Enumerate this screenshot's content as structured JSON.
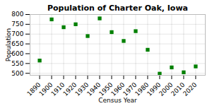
{
  "chart_data": {
    "type": "scatter",
    "title": "Population of Charter Oak, Iowa",
    "xlabel": "Census Year",
    "ylabel": "Population",
    "x": [
      1890,
      1900,
      1910,
      1920,
      1930,
      1940,
      1950,
      1960,
      1970,
      1980,
      1990,
      2000,
      2010,
      2020
    ],
    "values": [
      565,
      775,
      735,
      750,
      690,
      780,
      710,
      665,
      715,
      620,
      498,
      530,
      505,
      535
    ],
    "color": "#008000",
    "marker": "square",
    "xlim": [
      1882,
      2028
    ],
    "xticks": [
      1890,
      1900,
      1910,
      1920,
      1930,
      1940,
      1950,
      1960,
      1970,
      1980,
      1990,
      2000,
      2010,
      2020
    ],
    "ylim": [
      490,
      800
    ],
    "yticks": [
      500,
      550,
      600,
      650,
      700,
      750,
      800
    ],
    "grid": true
  }
}
